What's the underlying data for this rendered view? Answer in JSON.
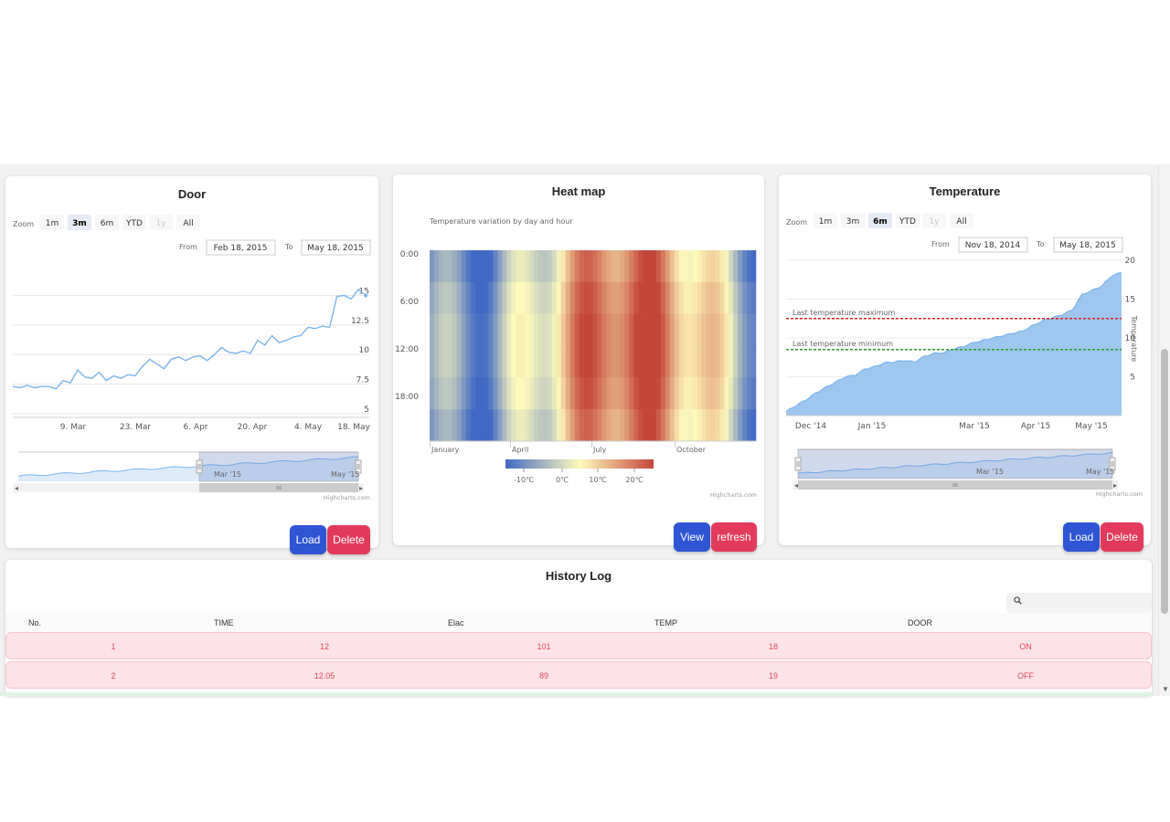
{
  "door": {
    "title": "Door",
    "zoom_label": "Zoom",
    "zoom_buttons": [
      "1m",
      "3m",
      "6m",
      "YTD",
      "1y",
      "All"
    ],
    "zoom_selected": "3m",
    "zoom_disabled": [
      "1y"
    ],
    "from_label": "From",
    "from_value": "Feb 18, 2015",
    "to_label": "To",
    "to_value": "May 18, 2015",
    "credit": "Highcharts.com",
    "load_label": "Load",
    "delete_label": "Delete"
  },
  "heatmap": {
    "title": "Heat map",
    "subtitle": "Temperature variation by day and hour",
    "credit": "Highcharts.com",
    "view_label": "View",
    "refresh_label": "refresh"
  },
  "temperature": {
    "title": "Temperature",
    "zoom_label": "Zoom",
    "zoom_buttons": [
      "1m",
      "3m",
      "6m",
      "YTD",
      "1y",
      "All"
    ],
    "zoom_selected": "6m",
    "zoom_disabled": [
      "1y"
    ],
    "from_label": "From",
    "from_value": "Nov 18, 2014",
    "to_label": "To",
    "to_value": "May 18, 2015",
    "credit": "Highcharts.com",
    "load_label": "Load",
    "delete_label": "Delete"
  },
  "history": {
    "title": "History Log",
    "search_placeholder": "",
    "columns": [
      "No.",
      "TIME",
      "Elac",
      "TEMP",
      "DOOR"
    ],
    "rows": [
      {
        "no": "1",
        "time": "12",
        "elac": "101",
        "temp": "18",
        "door": "ON"
      },
      {
        "no": "2",
        "time": "12.05",
        "elac": "89",
        "temp": "19",
        "door": "OFF"
      }
    ]
  },
  "colors": {
    "accent_blue": "#2f55d4",
    "accent_red": "#e23a5a",
    "series_blue": "#7cb5ec",
    "max_line": "#e02020",
    "min_line": "#2a9d2a",
    "row_bg": "#fde3e7",
    "row_text": "#e4485f"
  },
  "chart_data": [
    {
      "type": "line",
      "title": "Door",
      "x_ticks": [
        "9. Mar",
        "23. Mar",
        "6. Apr",
        "20. Apr",
        "4. May",
        "18. May"
      ],
      "y_ticks": [
        "5",
        "7.5",
        "10",
        "12.5",
        "15"
      ],
      "ylim": [
        5,
        17.5
      ],
      "x_range": [
        "2015-02-18",
        "2015-05-18"
      ],
      "series": [
        {
          "values": [
            7.3,
            7.2,
            7.4,
            7.2,
            7.3,
            7.3,
            7.1,
            7.8,
            7.6,
            8.7,
            8.1,
            8.0,
            8.5,
            7.8,
            8.2,
            8.0,
            8.3,
            8.2,
            9.0,
            9.6,
            9.2,
            8.8,
            9.6,
            9.8,
            9.5,
            9.8,
            9.9,
            9.5,
            10.0,
            10.6,
            10.2,
            10.1,
            10.3,
            10.1,
            11.2,
            10.8,
            11.6,
            11.0,
            11.2,
            11.5,
            11.6,
            12.3,
            12.2,
            12.4,
            12.3,
            14.9,
            15.0,
            14.7,
            15.5,
            15.0
          ]
        }
      ],
      "grid": true,
      "navigator": {
        "labels": [
          "Mar '15",
          "May '15"
        ]
      }
    },
    {
      "type": "heatmap",
      "title": "Heat map",
      "subtitle": "Temperature variation by day and hour",
      "x_ticks": [
        "January",
        "April",
        "July",
        "October"
      ],
      "y_ticks": [
        "0:00",
        "6:00",
        "12:00",
        "18:00"
      ],
      "color_axis": {
        "stops": [
          "#4169c4",
          "#fffbbc",
          "#c4463a"
        ],
        "labels": [
          "-10℃",
          "0℃",
          "10℃",
          "20℃"
        ]
      }
    },
    {
      "type": "area",
      "title": "Temperature",
      "x_ticks": [
        "Dec '14",
        "Jan '15",
        "Mar '15",
        "Apr '15",
        "May '15"
      ],
      "y_ticks": [
        "5",
        "10",
        "15",
        "20"
      ],
      "ylabel": "Temperature",
      "ylim": [
        0,
        20
      ],
      "x_range": [
        "2014-11-18",
        "2015-05-18"
      ],
      "series": [
        {
          "values": [
            0.5,
            1.3,
            2.0,
            2.9,
            3.6,
            4.3,
            5.0,
            5.2,
            6.0,
            6.3,
            6.8,
            6.9,
            7.1,
            6.9,
            7.6,
            8.0,
            8.1,
            8.6,
            8.9,
            9.4,
            9.7,
            10.0,
            10.3,
            10.6,
            10.9,
            11.6,
            12.2,
            12.6,
            13.0,
            13.6,
            15.6,
            16.1,
            16.7,
            18.0,
            18.4
          ]
        }
      ],
      "plot_lines": [
        {
          "label": "Last temperature maximum",
          "value": 12.5
        },
        {
          "label": "Last temperature minimum",
          "value": 8.5
        }
      ],
      "grid": true,
      "navigator": {
        "labels": [
          "Mar '15",
          "May '15"
        ]
      }
    }
  ]
}
